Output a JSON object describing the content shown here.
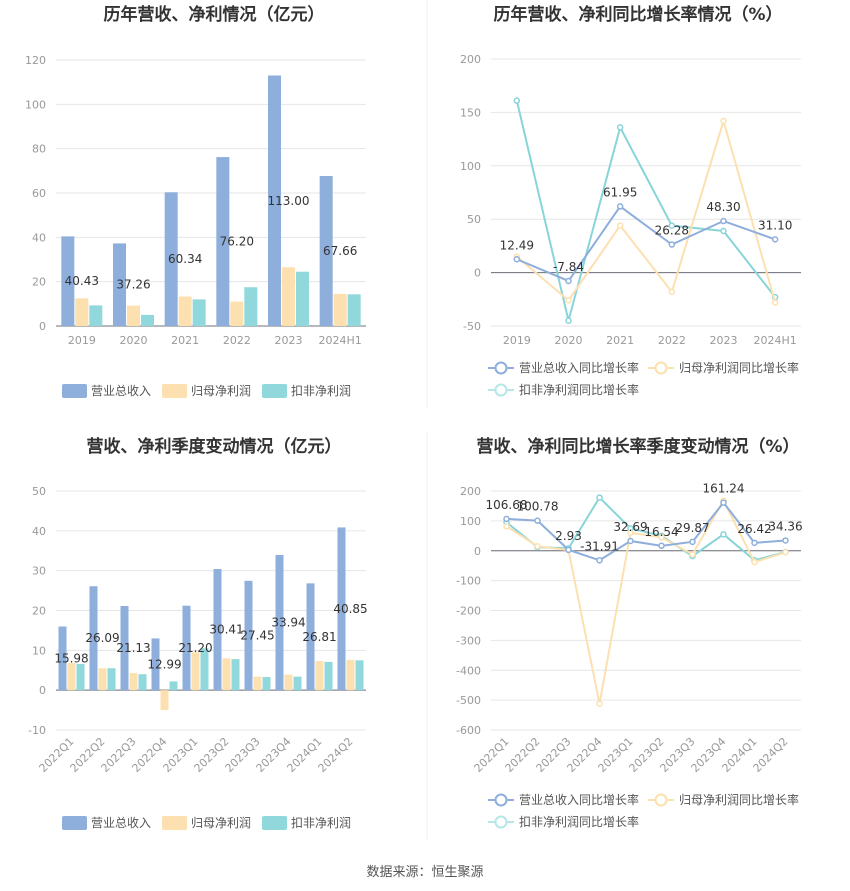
{
  "source": "数据来源：恒生聚源",
  "colors": {
    "revenue": "#8eaedc",
    "net": "#fde0b0",
    "deducted": "#91d8dc",
    "revenue_line": "#8eaedc",
    "net_line": "#fde0b0",
    "deducted_line": "#88d5d9"
  },
  "chart_data": [
    {
      "id": "annual-amount",
      "type": "bar",
      "title": "历年营收、净利情况（亿元）",
      "categories": [
        "2019",
        "2020",
        "2021",
        "2022",
        "2023",
        "2024H1"
      ],
      "ylim": [
        0,
        120
      ],
      "yticks": [
        0,
        20,
        40,
        60,
        80,
        100,
        120
      ],
      "series": [
        {
          "name": "营业总收入",
          "color_key": "revenue",
          "values": [
            40.43,
            37.26,
            60.34,
            76.2,
            113.0,
            67.66
          ],
          "labels": [
            "40.43",
            "37.26",
            "60.34",
            "76.20",
            "113.00",
            "67.66"
          ]
        },
        {
          "name": "归母净利润",
          "color_key": "net",
          "values": [
            12.5,
            9.2,
            13.3,
            11.0,
            26.5,
            14.5
          ]
        },
        {
          "name": "扣非净利润",
          "color_key": "deducted",
          "values": [
            9.3,
            5.0,
            12.0,
            17.5,
            24.5,
            14.3
          ]
        }
      ]
    },
    {
      "id": "annual-growth",
      "type": "line",
      "title": "历年营收、净利同比增长率情况（%）",
      "categories": [
        "2019",
        "2020",
        "2021",
        "2022",
        "2023",
        "2024H1"
      ],
      "ylim": [
        -50,
        200
      ],
      "yticks": [
        -50,
        0,
        50,
        100,
        150,
        200
      ],
      "series": [
        {
          "name": "营业总收入同比增长率",
          "color_key": "revenue_line",
          "values": [
            12.49,
            -7.84,
            61.95,
            26.28,
            48.3,
            31.1
          ],
          "labels": [
            "12.49",
            "-7.84",
            "61.95",
            "26.28",
            "48.30",
            "31.10"
          ]
        },
        {
          "name": "归母净利润同比增长率",
          "color_key": "net_line",
          "values": [
            15,
            -26,
            44,
            -18,
            142,
            -28
          ]
        },
        {
          "name": "扣非净利润同比增长率",
          "color_key": "deducted_line",
          "values": [
            161,
            -45,
            136,
            44,
            39,
            -23
          ]
        }
      ]
    },
    {
      "id": "quarterly-amount",
      "type": "bar",
      "title": "营收、净利季度变动情况（亿元）",
      "categories": [
        "2022Q1",
        "2022Q2",
        "2022Q3",
        "2022Q4",
        "2023Q1",
        "2023Q2",
        "2023Q3",
        "2023Q4",
        "2024Q1",
        "2024Q2"
      ],
      "ylim": [
        -10,
        50
      ],
      "yticks": [
        -10,
        0,
        10,
        20,
        30,
        40,
        50
      ],
      "series": [
        {
          "name": "营业总收入",
          "color_key": "revenue",
          "values": [
            15.98,
            26.09,
            21.13,
            12.99,
            21.2,
            30.41,
            27.45,
            33.94,
            26.81,
            40.85
          ],
          "labels": [
            "15.98",
            "26.09",
            "21.13",
            "12.99",
            "21.20",
            "30.41",
            "27.45",
            "33.94",
            "26.81",
            "40.85"
          ]
        },
        {
          "name": "归母净利润",
          "color_key": "net",
          "values": [
            6.8,
            5.5,
            4.3,
            -5.0,
            9.5,
            8.0,
            3.4,
            3.9,
            7.3,
            7.6
          ]
        },
        {
          "name": "扣非净利润",
          "color_key": "deducted",
          "values": [
            6.6,
            5.5,
            4.0,
            2.2,
            10.5,
            7.8,
            3.3,
            3.4,
            7.1,
            7.5
          ]
        }
      ]
    },
    {
      "id": "quarterly-growth",
      "type": "line",
      "title": "营收、净利同比增长率季度变动情况（%）",
      "categories": [
        "2022Q1",
        "2022Q2",
        "2022Q3",
        "2022Q4",
        "2023Q1",
        "2023Q2",
        "2023Q3",
        "2023Q4",
        "2024Q1",
        "2024Q2"
      ],
      "ylim": [
        -600,
        200
      ],
      "yticks": [
        -600,
        -500,
        -400,
        -300,
        -200,
        -100,
        0,
        100,
        200
      ],
      "series": [
        {
          "name": "营业总收入同比增长率",
          "color_key": "revenue_line",
          "values": [
            106.68,
            100.78,
            2.93,
            -31.91,
            32.69,
            16.54,
            29.87,
            161.24,
            26.42,
            34.36
          ],
          "labels": [
            "106.68",
            "100.78",
            "2.93",
            "-31.91",
            "32.69",
            "16.54",
            "29.87",
            "161.24",
            "26.42",
            "34.36"
          ]
        },
        {
          "name": "归母净利润同比增长率",
          "color_key": "net_line",
          "values": [
            82,
            15,
            2,
            -512,
            60,
            45,
            -12,
            168,
            -38,
            -5
          ]
        },
        {
          "name": "扣非净利润同比增长率",
          "color_key": "deducted_line",
          "values": [
            95,
            12,
            8,
            178,
            75,
            50,
            -18,
            55,
            -32,
            -4
          ]
        }
      ]
    }
  ]
}
